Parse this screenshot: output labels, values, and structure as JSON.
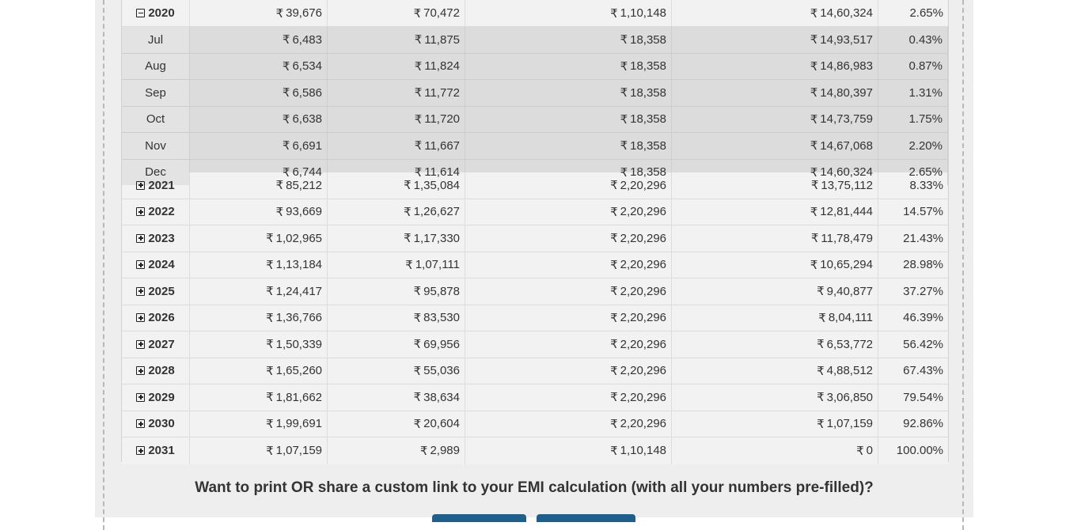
{
  "currency_symbol": "₹",
  "open_year": {
    "year": "2020",
    "principal": "39,676",
    "interest": "70,472",
    "total": "1,10,148",
    "balance": "14,60,324",
    "paid_pct": "2.65%"
  },
  "months": [
    {
      "month": "Jul",
      "principal": "6,483",
      "interest": "11,875",
      "total": "18,358",
      "balance": "14,93,517",
      "paid_pct": "0.43%"
    },
    {
      "month": "Aug",
      "principal": "6,534",
      "interest": "11,824",
      "total": "18,358",
      "balance": "14,86,983",
      "paid_pct": "0.87%"
    },
    {
      "month": "Sep",
      "principal": "6,586",
      "interest": "11,772",
      "total": "18,358",
      "balance": "14,80,397",
      "paid_pct": "1.31%"
    },
    {
      "month": "Oct",
      "principal": "6,638",
      "interest": "11,720",
      "total": "18,358",
      "balance": "14,73,759",
      "paid_pct": "1.75%"
    },
    {
      "month": "Nov",
      "principal": "6,691",
      "interest": "11,667",
      "total": "18,358",
      "balance": "14,67,068",
      "paid_pct": "2.20%"
    },
    {
      "month": "Dec",
      "principal": "6,744",
      "interest": "11,614",
      "total": "18,358",
      "balance": "14,60,324",
      "paid_pct": "2.65%"
    }
  ],
  "years": [
    {
      "year": "2021",
      "principal": "85,212",
      "interest": "1,35,084",
      "total": "2,20,296",
      "balance": "13,75,112",
      "paid_pct": "8.33%"
    },
    {
      "year": "2022",
      "principal": "93,669",
      "interest": "1,26,627",
      "total": "2,20,296",
      "balance": "12,81,444",
      "paid_pct": "14.57%"
    },
    {
      "year": "2023",
      "principal": "1,02,965",
      "interest": "1,17,330",
      "total": "2,20,296",
      "balance": "11,78,479",
      "paid_pct": "21.43%"
    },
    {
      "year": "2024",
      "principal": "1,13,184",
      "interest": "1,07,111",
      "total": "2,20,296",
      "balance": "10,65,294",
      "paid_pct": "28.98%"
    },
    {
      "year": "2025",
      "principal": "1,24,417",
      "interest": "95,878",
      "total": "2,20,296",
      "balance": "9,40,877",
      "paid_pct": "37.27%"
    },
    {
      "year": "2026",
      "principal": "1,36,766",
      "interest": "83,530",
      "total": "2,20,296",
      "balance": "8,04,111",
      "paid_pct": "46.39%"
    },
    {
      "year": "2027",
      "principal": "1,50,339",
      "interest": "69,956",
      "total": "2,20,296",
      "balance": "6,53,772",
      "paid_pct": "56.42%"
    },
    {
      "year": "2028",
      "principal": "1,65,260",
      "interest": "55,036",
      "total": "2,20,296",
      "balance": "4,88,512",
      "paid_pct": "67.43%"
    },
    {
      "year": "2029",
      "principal": "1,81,662",
      "interest": "38,634",
      "total": "2,20,296",
      "balance": "3,06,850",
      "paid_pct": "79.54%"
    },
    {
      "year": "2030",
      "principal": "1,99,691",
      "interest": "20,604",
      "total": "2,20,296",
      "balance": "1,07,159",
      "paid_pct": "92.86%"
    },
    {
      "year": "2031",
      "principal": "1,07,159",
      "interest": "2,989",
      "total": "1,10,148",
      "balance": "0",
      "paid_pct": "100.00%"
    }
  ],
  "share_prompt": "Want to print OR share a custom link to your EMI calculation (with all your numbers pre-filled)?",
  "colors": {
    "button": "#1f5f8b",
    "panel": "#eeeeee",
    "month_bg": "#dcdcdc"
  }
}
